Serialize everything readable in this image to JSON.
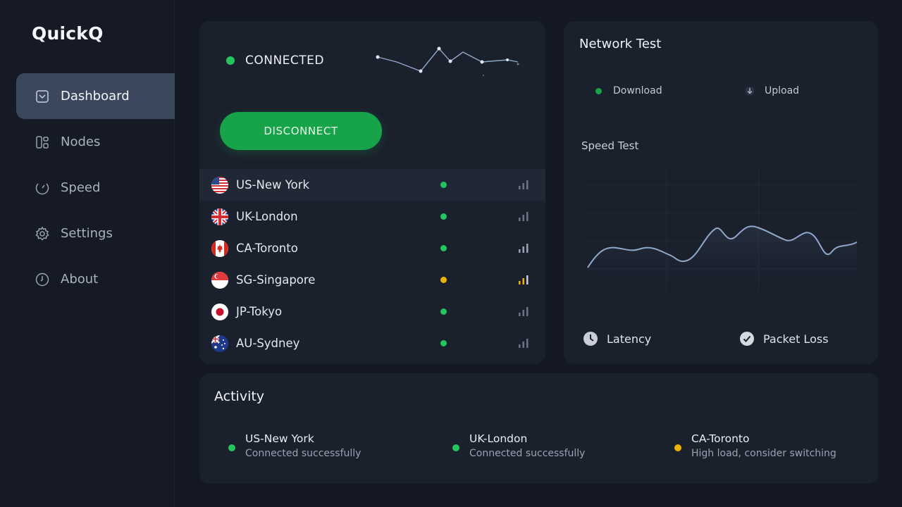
{
  "app": {
    "title": "QuickQ"
  },
  "sidebar": {
    "items": [
      {
        "label": "Dashboard",
        "icon": "dashboard-icon",
        "active": true
      },
      {
        "label": "Nodes",
        "icon": "nodes-icon",
        "active": false
      },
      {
        "label": "Speed",
        "icon": "speed-icon",
        "active": false
      },
      {
        "label": "Settings",
        "icon": "gear-icon",
        "active": false
      },
      {
        "label": "About",
        "icon": "clock-icon",
        "active": false
      }
    ]
  },
  "connection": {
    "status": "CONNECTED",
    "status_color": "#22c55e",
    "button_label": "DISCONNECT"
  },
  "servers": [
    {
      "name": "US-New York",
      "flag": "us-flag-icon",
      "status": "green",
      "active": true
    },
    {
      "name": "UK-London",
      "flag": "uk-flag-icon",
      "status": "green",
      "active": false
    },
    {
      "name": "CA-Toronto",
      "flag": "ca-flag-icon",
      "status": "green",
      "active": false
    },
    {
      "name": "SG-Singapore",
      "flag": "sg-flag-icon",
      "status": "yellow",
      "active": false
    },
    {
      "name": "JP-Tokyo",
      "flag": "jp-flag-icon",
      "status": "green",
      "active": false
    },
    {
      "name": "AU-Sydney",
      "flag": "au-flag-icon",
      "status": "green",
      "active": false
    }
  ],
  "network_test": {
    "title": "Network Test",
    "download_label": "Download",
    "upload_label": "Upload",
    "speed_test_label": "Speed Test",
    "latency_label": "Latency",
    "packet_loss_label": "Packet Loss"
  },
  "activity": {
    "title": "Activity",
    "items": [
      {
        "name": "US-New York",
        "message": "Connected successfully",
        "status": "green"
      },
      {
        "name": "UK-London",
        "message": "Connected successfully",
        "status": "green"
      },
      {
        "name": "CA-Toronto",
        "message": "High load, consider switching",
        "status": "yellow"
      }
    ]
  },
  "colors": {
    "green": "#22c55e",
    "yellow": "#eab308",
    "accent": "#16a34a",
    "line": "#8fa7c9"
  }
}
